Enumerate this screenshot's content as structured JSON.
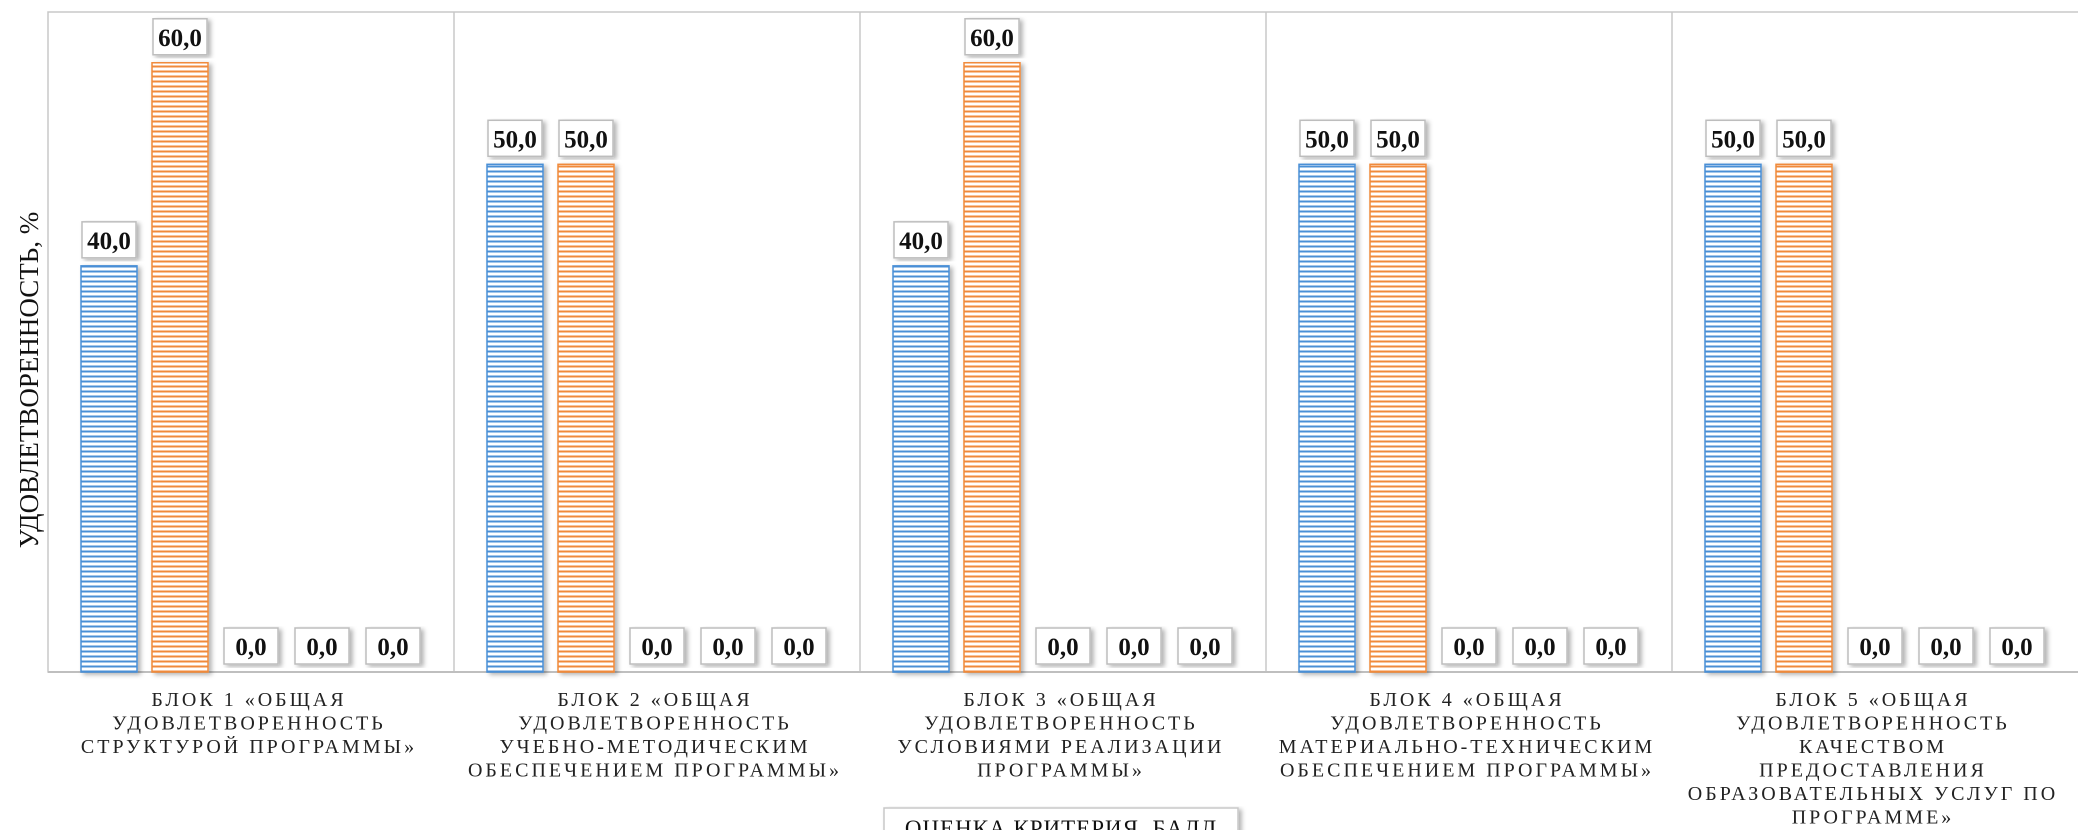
{
  "chart_data": {
    "type": "bar",
    "ylabel": "УДОВЛЕТВОРЕННОСТЬ, %",
    "xlabel": "",
    "legend_title": "ОЦЕНКА КРИТЕРИЯ, БАЛЛ",
    "legend_placement": "bottom",
    "ylim": [
      0,
      65
    ],
    "grid": false,
    "categories": [
      [
        "БЛОК 1 «ОБЩАЯ",
        "УДОВЛЕТВОРЕННОСТЬ",
        "СТРУКТУРОЙ ПРОГРАММЫ»"
      ],
      [
        "БЛОК 2 «ОБЩАЯ",
        "УДОВЛЕТВОРЕННОСТЬ",
        "УЧЕБНО-МЕТОДИЧЕСКИМ",
        "ОБЕСПЕЧЕНИЕМ ПРОГРАММЫ»"
      ],
      [
        "БЛОК 3 «ОБЩАЯ",
        "УДОВЛЕТВОРЕННОСТЬ",
        "УСЛОВИЯМИ РЕАЛИЗАЦИИ",
        "ПРОГРАММЫ»"
      ],
      [
        "БЛОК 4 «ОБЩАЯ",
        "УДОВЛЕТВОРЕННОСТЬ",
        "МАТЕРИАЛЬНО-ТЕХНИЧЕСКИМ",
        "ОБЕСПЕЧЕНИЕМ ПРОГРАММЫ»"
      ],
      [
        "БЛОК 5 «ОБЩАЯ",
        "УДОВЛЕТВОРЕННОСТЬ",
        "КАЧЕСТВОМ",
        "ПРЕДОСТАВЛЕНИЯ",
        "ОБРАЗОВАТЕЛЬНЫХ УСЛУГ ПО",
        "ПРОГРАММЕ»"
      ]
    ],
    "series": [
      {
        "color": "#4a8fd6",
        "values": [
          40.0,
          50.0,
          40.0,
          50.0,
          50.0
        ],
        "labels": [
          "40,0",
          "50,0",
          "40,0",
          "50,0",
          "50,0"
        ]
      },
      {
        "color": "#f08a3a",
        "values": [
          60.0,
          50.0,
          60.0,
          50.0,
          50.0
        ],
        "labels": [
          "60,0",
          "50,0",
          "60,0",
          "50,0",
          "50,0"
        ]
      },
      {
        "color": "#888888",
        "values": [
          0.0,
          0.0,
          0.0,
          0.0,
          0.0
        ],
        "labels": [
          "0,0",
          "0,0",
          "0,0",
          "0,0",
          "0,0"
        ]
      },
      {
        "color": "#888888",
        "values": [
          0.0,
          0.0,
          0.0,
          0.0,
          0.0
        ],
        "labels": [
          "0,0",
          "0,0",
          "0,0",
          "0,0",
          "0,0"
        ]
      },
      {
        "color": "#888888",
        "values": [
          0.0,
          0.0,
          0.0,
          0.0,
          0.0
        ],
        "labels": [
          "0,0",
          "0,0",
          "0,0",
          "0,0",
          "0,0"
        ]
      }
    ]
  }
}
